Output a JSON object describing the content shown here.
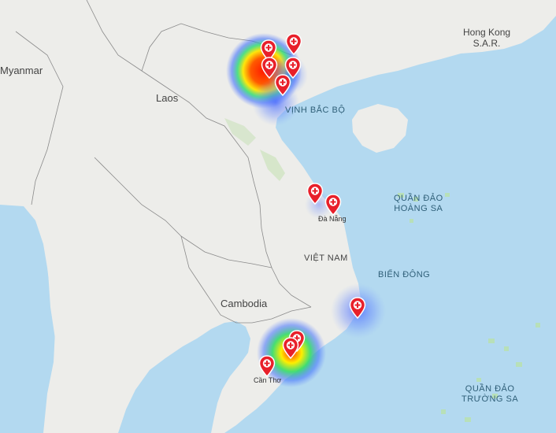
{
  "map": {
    "labels": {
      "myanmar": "Myanmar",
      "laos": "Laos",
      "cambodia": "Cambodia",
      "vietnam": "VIỆT NAM",
      "hongkong_line1": "Hong Kong",
      "hongkong_line2": "S.A.R.",
      "gulf_tonkin": "VỊNH BẮC BỘ",
      "paracel_line1": "QUẦN ĐẢO",
      "paracel_line2": "HOÀNG SA",
      "spratly_line1": "QUẦN ĐẢO",
      "spratly_line2": "TRƯỜNG SA",
      "east_sea": "BIỂN ĐÔNG",
      "danang": "Đà Nẵng",
      "cantho": "Cần Thơ"
    },
    "colors": {
      "sea": "#b3d9f0",
      "land": "#ededea",
      "pin": "#e8202a",
      "heat_hot": "#ff2a00",
      "heat_warm": "#ffee00",
      "heat_mid": "#22dd66",
      "heat_cool": "#3355ff"
    },
    "marker_icon": "medical-cross-icon",
    "markers": [
      {
        "id": "hanoi-1"
      },
      {
        "id": "hanoi-2"
      },
      {
        "id": "haiphong-1"
      },
      {
        "id": "haiphong-2"
      },
      {
        "id": "ninhbinh"
      },
      {
        "id": "hue"
      },
      {
        "id": "danang"
      },
      {
        "id": "nhatrang"
      },
      {
        "id": "hcm-1"
      },
      {
        "id": "hcm-2"
      },
      {
        "id": "cantho"
      }
    ]
  }
}
